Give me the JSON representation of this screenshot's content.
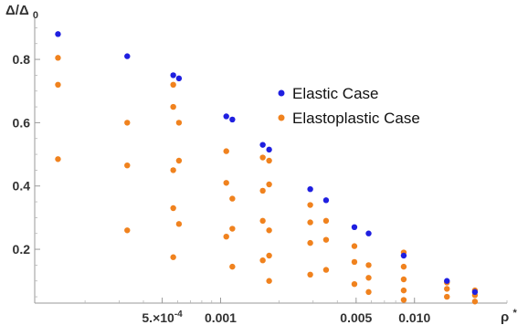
{
  "chart_data": {
    "type": "scatter",
    "xlabel": "ρ*",
    "ylabel": "Δ/Δ0",
    "xscale": "log",
    "xlim": [
      0.00011,
      0.03
    ],
    "ylim": [
      0.03,
      0.93
    ],
    "grid": false,
    "legend_position": "center-right",
    "xticks": [
      {
        "value": 0.0005,
        "label": "5.×10-4"
      },
      {
        "value": 0.001,
        "label": "0.001"
      },
      {
        "value": 0.005,
        "label": "0.005"
      },
      {
        "value": 0.01,
        "label": "0.010"
      }
    ],
    "yticks": [
      {
        "value": 0.2,
        "label": "0.2"
      },
      {
        "value": 0.4,
        "label": "0.4"
      },
      {
        "value": 0.6,
        "label": "0.6"
      },
      {
        "value": 0.8,
        "label": "0.8"
      }
    ],
    "series": [
      {
        "name": "Elastic Case",
        "color": "#1f1fe0",
        "points": [
          [
            0.000145,
            0.88
          ],
          [
            0.00033,
            0.81
          ],
          [
            0.00057,
            0.75
          ],
          [
            0.00061,
            0.74
          ],
          [
            0.00107,
            0.62
          ],
          [
            0.00115,
            0.61
          ],
          [
            0.00165,
            0.53
          ],
          [
            0.00178,
            0.515
          ],
          [
            0.0029,
            0.39
          ],
          [
            0.0035,
            0.355
          ],
          [
            0.0049,
            0.27
          ],
          [
            0.0058,
            0.25
          ],
          [
            0.0088,
            0.18
          ],
          [
            0.0147,
            0.1
          ],
          [
            0.0205,
            0.065
          ]
        ]
      },
      {
        "name": "Elastoplastic Case",
        "color": "#f0821e",
        "points": [
          [
            0.000145,
            0.805
          ],
          [
            0.000145,
            0.72
          ],
          [
            0.000145,
            0.485
          ],
          [
            0.00033,
            0.6
          ],
          [
            0.00033,
            0.465
          ],
          [
            0.00033,
            0.26
          ],
          [
            0.00057,
            0.72
          ],
          [
            0.00057,
            0.65
          ],
          [
            0.00057,
            0.45
          ],
          [
            0.00057,
            0.33
          ],
          [
            0.00057,
            0.175
          ],
          [
            0.00061,
            0.6
          ],
          [
            0.00061,
            0.48
          ],
          [
            0.00061,
            0.28
          ],
          [
            0.00107,
            0.51
          ],
          [
            0.00107,
            0.41
          ],
          [
            0.00107,
            0.24
          ],
          [
            0.00115,
            0.36
          ],
          [
            0.00115,
            0.265
          ],
          [
            0.00115,
            0.145
          ],
          [
            0.00165,
            0.49
          ],
          [
            0.00165,
            0.385
          ],
          [
            0.00165,
            0.29
          ],
          [
            0.00165,
            0.165
          ],
          [
            0.00178,
            0.48
          ],
          [
            0.00178,
            0.405
          ],
          [
            0.00178,
            0.26
          ],
          [
            0.00178,
            0.18
          ],
          [
            0.00178,
            0.1
          ],
          [
            0.0029,
            0.34
          ],
          [
            0.0029,
            0.285
          ],
          [
            0.0029,
            0.22
          ],
          [
            0.0029,
            0.12
          ],
          [
            0.0035,
            0.29
          ],
          [
            0.0035,
            0.23
          ],
          [
            0.0035,
            0.135
          ],
          [
            0.0049,
            0.21
          ],
          [
            0.0049,
            0.16
          ],
          [
            0.0049,
            0.09
          ],
          [
            0.0058,
            0.15
          ],
          [
            0.0058,
            0.11
          ],
          [
            0.0058,
            0.065
          ],
          [
            0.0088,
            0.19
          ],
          [
            0.0088,
            0.145
          ],
          [
            0.0088,
            0.105
          ],
          [
            0.0088,
            0.07
          ],
          [
            0.0088,
            0.04
          ],
          [
            0.0147,
            0.095
          ],
          [
            0.0147,
            0.075
          ],
          [
            0.0147,
            0.05
          ],
          [
            0.0205,
            0.07
          ],
          [
            0.0205,
            0.055
          ],
          [
            0.0205,
            0.035
          ]
        ]
      }
    ]
  }
}
